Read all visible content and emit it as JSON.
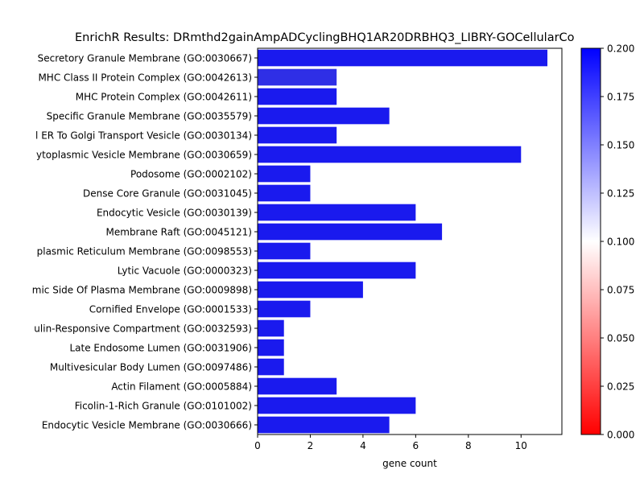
{
  "chart_data": {
    "type": "bar",
    "orientation": "horizontal",
    "title": "EnrichR Results: DRmthd2gainAmpADCyclingBHQ1AR20DRBHQ3_LIBRY-GOCellularCo",
    "xlabel": "gene count",
    "ylabel": "",
    "xlim": [
      0,
      11.55
    ],
    "xticks": [
      "0",
      "2",
      "4",
      "6",
      "8",
      "10"
    ],
    "grid": false,
    "categories": [
      "Secretory Granule Membrane (GO:0030667)",
      "MHC Class II Protein Complex (GO:0042613)",
      "MHC Protein Complex (GO:0042611)",
      "Specific Granule Membrane (GO:0035579)",
      "l ER To Golgi Transport Vesicle (GO:0030134)",
      "ytoplasmic Vesicle Membrane (GO:0030659)",
      "Podosome (GO:0002102)",
      "Dense Core Granule (GO:0031045)",
      "Endocytic Vesicle (GO:0030139)",
      "Membrane Raft (GO:0045121)",
      "plasmic Reticulum Membrane (GO:0098553)",
      "Lytic Vacuole (GO:0000323)",
      "mic Side Of Plasma Membrane (GO:0009898)",
      "Cornified Envelope (GO:0001533)",
      "ulin-Responsive Compartment (GO:0032593)",
      "Late Endosome Lumen (GO:0031906)",
      "Multivesicular Body Lumen (GO:0097486)",
      "Actin Filament (GO:0005884)",
      "Ficolin-1-Rich Granule (GO:0101002)",
      "Endocytic Vesicle Membrane (GO:0030666)"
    ],
    "values": [
      11,
      3,
      3,
      5,
      3,
      10,
      2,
      2,
      6,
      7,
      2,
      6,
      4,
      2,
      1,
      1,
      1,
      3,
      6,
      5
    ],
    "bar_colors": [
      "#1a1aee",
      "#2f2fe6",
      "#1a1aee",
      "#1a1aee",
      "#1a1aee",
      "#1a1aee",
      "#1a1aee",
      "#1a1aee",
      "#1a1aee",
      "#1a1aee",
      "#1a1aee",
      "#1a1aee",
      "#1a1aee",
      "#1a1aee",
      "#1a1aee",
      "#1a1aee",
      "#1a1aee",
      "#1a1aee",
      "#1a1aee",
      "#1a1aee"
    ],
    "colorbar": {
      "min": 0.0,
      "max": 0.2,
      "colors": [
        "#ff0000",
        "#ffffff",
        "#0000ff"
      ],
      "ticks": [
        "0.000",
        "0.025",
        "0.050",
        "0.075",
        "0.100",
        "0.125",
        "0.150",
        "0.175",
        "0.200"
      ]
    }
  }
}
